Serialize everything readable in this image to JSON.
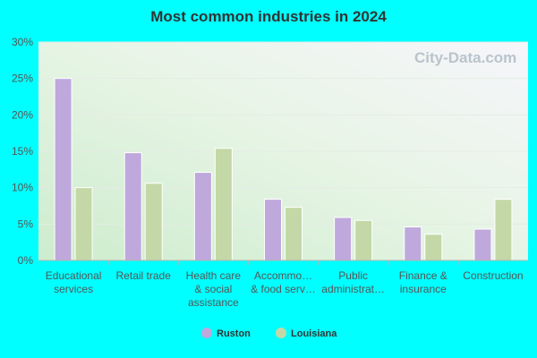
{
  "watermark": "City-Data.com",
  "chart_data": {
    "type": "bar",
    "title": "Most common industries in 2024",
    "categories": [
      [
        "Educational",
        "services"
      ],
      [
        "Retail trade"
      ],
      [
        "Health care",
        "& social",
        "assistance"
      ],
      [
        "Accommo…",
        "& food serv…"
      ],
      [
        "Public",
        "administrat…"
      ],
      [
        "Finance &",
        "insurance"
      ],
      [
        "Construction"
      ]
    ],
    "series": [
      {
        "name": "Ruston",
        "color": "#bea8dc",
        "values": [
          25.0,
          14.8,
          12.1,
          8.4,
          5.9,
          4.6,
          4.3
        ]
      },
      {
        "name": "Louisiana",
        "color": "#c3d8a6",
        "values": [
          10.0,
          10.6,
          15.4,
          7.3,
          5.5,
          3.6,
          8.4
        ]
      }
    ],
    "yticks": [
      "0%",
      "5%",
      "10%",
      "15%",
      "20%",
      "25%",
      "30%"
    ],
    "ylim": [
      0,
      30
    ],
    "grid": true,
    "legend": "bottom"
  }
}
